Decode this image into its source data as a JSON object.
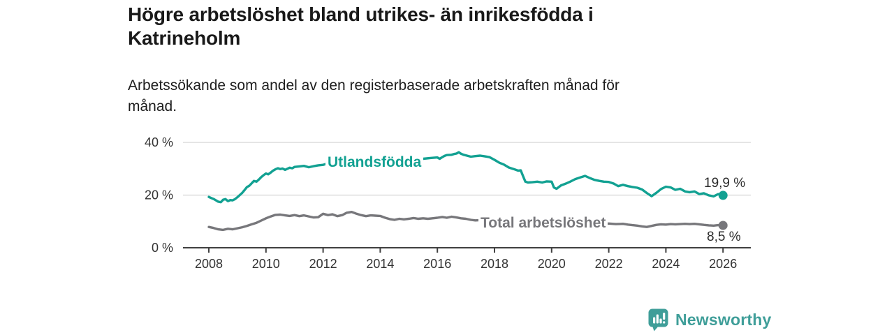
{
  "header": {
    "title": "Högre arbetslöshet bland utrikes- än inrikesfödda i Katrineholm",
    "title_lines": [
      "Högre arbetslöshet bland utrikes- än inrikesfödda i",
      "Katrineholm"
    ],
    "subtitle": "Arbetssökande som andel av den registerbaserade arbetskraften månad för månad.",
    "subtitle_lines": [
      "Arbetssökande som andel av den registerbaserade arbetskraften månad för",
      "månad."
    ]
  },
  "footer": {
    "brand": "Newsworthy",
    "brand_color": "#3f9e99",
    "logo_icon": "speech-bubble-bar-chart-icon"
  },
  "chart_data": {
    "type": "line",
    "title": "Högre arbetslöshet bland utrikes- än inrikesfödda i Katrineholm",
    "subtitle": "Arbetssökande som andel av den registerbaserade arbetskraften månad för månad.",
    "unit": "%",
    "xlabel": "",
    "ylabel": "",
    "x_lim": [
      2008,
      2026
    ],
    "y_lim": [
      0,
      40
    ],
    "grid": "horizontal",
    "legend_position": "inline-labels",
    "x_ticks": [
      "2008",
      "2010",
      "2012",
      "2014",
      "2016",
      "2018",
      "2020",
      "2022",
      "2024",
      "2026"
    ],
    "x_tick_years": [
      2008,
      2010,
      2012,
      2014,
      2016,
      2018,
      2020,
      2022,
      2024,
      2026
    ],
    "y_ticks": [
      {
        "value": 0,
        "label": "0 %"
      },
      {
        "value": 20,
        "label": "20 %"
      },
      {
        "value": 40,
        "label": "40 %"
      }
    ],
    "colors": {
      "grid": "#d8d8d8",
      "axis": "#404040",
      "axis_text": "#333333",
      "end_label_text": "#2b2b2b"
    },
    "series": [
      {
        "name": "Utlandsfödda",
        "color": "#12a192",
        "end_label": "19,9 %",
        "end_value": 19.9,
        "points": [
          [
            2008,
            19.3
          ],
          [
            2008.08,
            18.9
          ],
          [
            2008.17,
            18.5
          ],
          [
            2008.25,
            18.0
          ],
          [
            2008.33,
            17.5
          ],
          [
            2008.42,
            17.3
          ],
          [
            2008.5,
            18.2
          ],
          [
            2008.58,
            18.5
          ],
          [
            2008.67,
            17.7
          ],
          [
            2008.75,
            18.1
          ],
          [
            2008.83,
            18.0
          ],
          [
            2008.92,
            18.5
          ],
          [
            2009,
            19.2
          ],
          [
            2009.08,
            20.0
          ],
          [
            2009.17,
            20.9
          ],
          [
            2009.25,
            21.9
          ],
          [
            2009.33,
            23.0
          ],
          [
            2009.42,
            23.6
          ],
          [
            2009.5,
            24.5
          ],
          [
            2009.58,
            25.4
          ],
          [
            2009.67,
            25.1
          ],
          [
            2009.75,
            25.9
          ],
          [
            2009.83,
            26.8
          ],
          [
            2009.92,
            27.6
          ],
          [
            2010,
            28.2
          ],
          [
            2010.08,
            27.9
          ],
          [
            2010.17,
            28.6
          ],
          [
            2010.25,
            29.3
          ],
          [
            2010.33,
            29.8
          ],
          [
            2010.42,
            30.2
          ],
          [
            2010.5,
            29.9
          ],
          [
            2010.58,
            30.1
          ],
          [
            2010.67,
            29.6
          ],
          [
            2010.75,
            30.0
          ],
          [
            2010.83,
            30.4
          ],
          [
            2010.92,
            30.2
          ],
          [
            2011,
            30.7
          ],
          [
            2011.17,
            30.9
          ],
          [
            2011.33,
            31.1
          ],
          [
            2011.5,
            30.6
          ],
          [
            2011.67,
            31.0
          ],
          [
            2011.83,
            31.3
          ],
          [
            2012,
            31.5
          ],
          [
            2012.17,
            32.1
          ],
          [
            2012.33,
            31.8
          ],
          [
            2012.5,
            32.4
          ],
          [
            2012.67,
            32.1
          ],
          [
            2012.83,
            31.6
          ],
          [
            2013,
            31.0
          ],
          [
            2013.17,
            30.4
          ],
          [
            2013.33,
            30.0
          ],
          [
            2013.5,
            29.7
          ],
          [
            2013.67,
            29.9
          ],
          [
            2013.83,
            30.4
          ],
          [
            2014,
            31.1
          ],
          [
            2014.25,
            31.9
          ],
          [
            2014.5,
            32.5
          ],
          [
            2014.75,
            33.0
          ],
          [
            2015,
            33.3
          ],
          [
            2015.25,
            33.6
          ],
          [
            2015.5,
            33.8
          ],
          [
            2015.75,
            34.1
          ],
          [
            2016,
            34.3
          ],
          [
            2016.08,
            33.8
          ],
          [
            2016.17,
            34.4
          ],
          [
            2016.25,
            34.9
          ],
          [
            2016.33,
            35.2
          ],
          [
            2016.5,
            35.3
          ],
          [
            2016.58,
            35.6
          ],
          [
            2016.67,
            35.8
          ],
          [
            2016.75,
            36.3
          ],
          [
            2016.83,
            35.7
          ],
          [
            2016.92,
            35.3
          ],
          [
            2017,
            35.1
          ],
          [
            2017.17,
            34.6
          ],
          [
            2017.33,
            34.8
          ],
          [
            2017.5,
            35.0
          ],
          [
            2017.67,
            34.7
          ],
          [
            2017.83,
            34.4
          ],
          [
            2018,
            33.4
          ],
          [
            2018.17,
            32.3
          ],
          [
            2018.33,
            31.6
          ],
          [
            2018.5,
            30.5
          ],
          [
            2018.67,
            29.9
          ],
          [
            2018.83,
            29.3
          ],
          [
            2018.92,
            29.4
          ],
          [
            2019,
            27.2
          ],
          [
            2019.08,
            25.1
          ],
          [
            2019.17,
            24.8
          ],
          [
            2019.33,
            24.9
          ],
          [
            2019.5,
            25.1
          ],
          [
            2019.67,
            24.8
          ],
          [
            2019.83,
            25.2
          ],
          [
            2020,
            25.1
          ],
          [
            2020.08,
            22.9
          ],
          [
            2020.17,
            22.4
          ],
          [
            2020.33,
            23.7
          ],
          [
            2020.5,
            24.4
          ],
          [
            2020.67,
            25.2
          ],
          [
            2020.83,
            26.1
          ],
          [
            2021,
            26.7
          ],
          [
            2021.08,
            27.0
          ],
          [
            2021.17,
            27.3
          ],
          [
            2021.33,
            26.5
          ],
          [
            2021.5,
            25.8
          ],
          [
            2021.67,
            25.4
          ],
          [
            2021.83,
            25.1
          ],
          [
            2022,
            25.0
          ],
          [
            2022.17,
            24.4
          ],
          [
            2022.33,
            23.4
          ],
          [
            2022.5,
            23.9
          ],
          [
            2022.67,
            23.4
          ],
          [
            2022.83,
            23.1
          ],
          [
            2023,
            22.8
          ],
          [
            2023.17,
            22.1
          ],
          [
            2023.33,
            20.8
          ],
          [
            2023.5,
            19.6
          ],
          [
            2023.67,
            20.9
          ],
          [
            2023.83,
            22.3
          ],
          [
            2024,
            23.2
          ],
          [
            2024.17,
            22.9
          ],
          [
            2024.33,
            22.0
          ],
          [
            2024.5,
            22.4
          ],
          [
            2024.67,
            21.4
          ],
          [
            2024.83,
            21.1
          ],
          [
            2025,
            21.4
          ],
          [
            2025.17,
            20.4
          ],
          [
            2025.33,
            20.7
          ],
          [
            2025.5,
            19.9
          ],
          [
            2025.67,
            19.5
          ],
          [
            2025.83,
            20.4
          ],
          [
            2026,
            19.9
          ]
        ]
      },
      {
        "name": "Total arbetslöshet",
        "color": "#77777b",
        "end_label": "8,5 %",
        "end_value": 8.5,
        "points": [
          [
            2008,
            7.9
          ],
          [
            2008.17,
            7.5
          ],
          [
            2008.33,
            7.0
          ],
          [
            2008.5,
            6.8
          ],
          [
            2008.67,
            7.2
          ],
          [
            2008.83,
            7.0
          ],
          [
            2009,
            7.4
          ],
          [
            2009.17,
            7.8
          ],
          [
            2009.33,
            8.3
          ],
          [
            2009.5,
            8.9
          ],
          [
            2009.67,
            9.5
          ],
          [
            2009.83,
            10.3
          ],
          [
            2010,
            11.2
          ],
          [
            2010.17,
            11.9
          ],
          [
            2010.33,
            12.5
          ],
          [
            2010.5,
            12.6
          ],
          [
            2010.67,
            12.3
          ],
          [
            2010.83,
            12.1
          ],
          [
            2011,
            12.4
          ],
          [
            2011.17,
            12.0
          ],
          [
            2011.33,
            12.3
          ],
          [
            2011.5,
            11.9
          ],
          [
            2011.67,
            11.5
          ],
          [
            2011.83,
            11.6
          ],
          [
            2012,
            12.9
          ],
          [
            2012.17,
            12.4
          ],
          [
            2012.33,
            12.7
          ],
          [
            2012.5,
            12.0
          ],
          [
            2012.67,
            12.4
          ],
          [
            2012.83,
            13.3
          ],
          [
            2013,
            13.6
          ],
          [
            2013.17,
            12.9
          ],
          [
            2013.33,
            12.4
          ],
          [
            2013.5,
            12.0
          ],
          [
            2013.67,
            12.3
          ],
          [
            2013.83,
            12.2
          ],
          [
            2014,
            12.1
          ],
          [
            2014.17,
            11.4
          ],
          [
            2014.33,
            10.9
          ],
          [
            2014.5,
            10.6
          ],
          [
            2014.67,
            11.0
          ],
          [
            2014.83,
            10.8
          ],
          [
            2015,
            11.0
          ],
          [
            2015.17,
            11.3
          ],
          [
            2015.33,
            11.0
          ],
          [
            2015.5,
            11.2
          ],
          [
            2015.67,
            11.0
          ],
          [
            2015.83,
            11.2
          ],
          [
            2016,
            11.4
          ],
          [
            2016.17,
            11.7
          ],
          [
            2016.33,
            11.4
          ],
          [
            2016.5,
            11.8
          ],
          [
            2016.67,
            11.5
          ],
          [
            2016.83,
            11.2
          ],
          [
            2017,
            11.0
          ],
          [
            2017.17,
            10.6
          ],
          [
            2017.33,
            10.4
          ],
          [
            2017.5,
            10.5
          ],
          [
            2017.67,
            10.3
          ],
          [
            2017.83,
            10.4
          ],
          [
            2018,
            10.2
          ],
          [
            2018.25,
            10.0
          ],
          [
            2018.5,
            9.8
          ],
          [
            2018.75,
            9.6
          ],
          [
            2019,
            9.3
          ],
          [
            2019.25,
            9.2
          ],
          [
            2019.5,
            9.1
          ],
          [
            2019.75,
            9.3
          ],
          [
            2020,
            9.4
          ],
          [
            2020.25,
            9.6
          ],
          [
            2020.5,
            9.5
          ],
          [
            2020.75,
            9.4
          ],
          [
            2021,
            9.5
          ],
          [
            2021.25,
            9.3
          ],
          [
            2021.5,
            9.2
          ],
          [
            2021.75,
            9.1
          ],
          [
            2022,
            9.2
          ],
          [
            2022.25,
            9.0
          ],
          [
            2022.5,
            9.1
          ],
          [
            2022.67,
            8.8
          ],
          [
            2022.83,
            8.6
          ],
          [
            2023,
            8.4
          ],
          [
            2023.17,
            8.1
          ],
          [
            2023.33,
            7.9
          ],
          [
            2023.5,
            8.3
          ],
          [
            2023.67,
            8.7
          ],
          [
            2023.83,
            8.9
          ],
          [
            2024,
            8.8
          ],
          [
            2024.17,
            9.0
          ],
          [
            2024.33,
            8.9
          ],
          [
            2024.5,
            9.0
          ],
          [
            2024.67,
            9.1
          ],
          [
            2024.83,
            9.0
          ],
          [
            2025,
            9.1
          ],
          [
            2025.17,
            8.9
          ],
          [
            2025.33,
            8.7
          ],
          [
            2025.5,
            8.5
          ],
          [
            2025.67,
            8.4
          ],
          [
            2025.83,
            8.6
          ],
          [
            2026,
            8.5
          ]
        ]
      }
    ]
  }
}
